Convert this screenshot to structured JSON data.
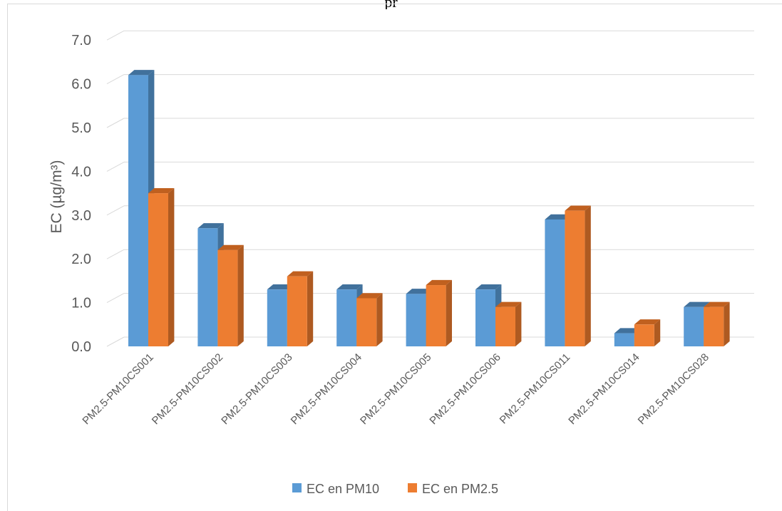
{
  "caption": "pr",
  "chart_data": {
    "type": "bar",
    "categories": [
      "PM2.5-PM10CS001",
      "PM2.5-PM10CS002",
      "PM2.5-PM10CS003",
      "PM2.5-PM10CS004",
      "PM2.5-PM10CS005",
      "PM2.5-PM10CS006",
      "PM2.5-PM10CS011",
      "PM2.5-PM10CS014",
      "PM2.5-PM10CS028"
    ],
    "series": [
      {
        "name": "EC en PM10",
        "color": "#5b9bd5",
        "side_color": "#41729d",
        "top_color": "#41719c",
        "values": [
          6.2,
          2.7,
          1.3,
          1.3,
          1.2,
          1.3,
          2.9,
          0.3,
          0.9
        ]
      },
      {
        "name": "EC en PM2.5",
        "color": "#ed7d31",
        "side_color": "#ae5a21",
        "top_color": "#c0601f",
        "values": [
          3.5,
          2.2,
          1.6,
          1.1,
          1.4,
          0.9,
          3.1,
          0.5,
          0.9
        ]
      }
    ],
    "ylabel": "EC (µg/m³)",
    "yticks": [
      "0.0",
      "1.0",
      "2.0",
      "3.0",
      "4.0",
      "5.0",
      "6.0",
      "7.0"
    ],
    "ylim": [
      0,
      7
    ],
    "grid": true,
    "legend_position": "bottom",
    "style": "3d-clustered-column"
  }
}
